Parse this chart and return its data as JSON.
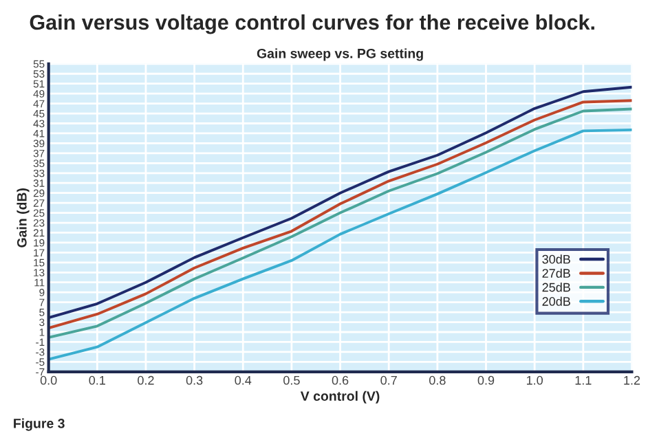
{
  "chart_data": {
    "type": "line",
    "title": "Gain versus voltage control curves for the receive block.",
    "subtitle": "Gain sweep vs. PG setting",
    "xlabel": "V control (V)",
    "ylabel": "Gain (dB)",
    "x": [
      0.0,
      0.1,
      0.2,
      0.3,
      0.4,
      0.5,
      0.6,
      0.7,
      0.8,
      0.9,
      1.0,
      1.1,
      1.2
    ],
    "series": [
      {
        "name": "30dB",
        "color": "#1f2a6b",
        "values": [
          3.9,
          6.7,
          11.0,
          16.0,
          20.0,
          23.9,
          29.0,
          33.3,
          36.6,
          41.1,
          46.0,
          49.4,
          50.3
        ]
      },
      {
        "name": "27dB",
        "color": "#c0462a",
        "values": [
          1.8,
          4.6,
          8.7,
          13.9,
          17.9,
          21.3,
          26.8,
          31.4,
          34.8,
          39.1,
          43.7,
          47.3,
          47.6
        ]
      },
      {
        "name": "25dB",
        "color": "#4aa59a",
        "values": [
          -0.1,
          2.2,
          6.8,
          11.7,
          15.9,
          20.2,
          25.0,
          29.4,
          32.9,
          37.2,
          41.8,
          45.5,
          45.9
        ]
      },
      {
        "name": "20dB",
        "color": "#3aaed0",
        "values": [
          -4.5,
          -2.0,
          2.9,
          7.8,
          11.7,
          15.4,
          20.7,
          24.8,
          28.8,
          33.1,
          37.5,
          41.5,
          41.7
        ]
      }
    ],
    "xlim": [
      0.0,
      1.2
    ],
    "ylim": [
      -7,
      55
    ],
    "xticks": [
      {
        "value": 0.0,
        "label": "0.0"
      },
      0.1,
      0.2,
      0.3,
      0.4,
      0.5,
      0.6,
      0.7,
      0.8,
      0.9,
      {
        "value": 1.0,
        "label": "1.0"
      },
      1.1,
      1.2
    ],
    "yticks": [
      -7,
      -5,
      -3,
      -1,
      1,
      3,
      5,
      7,
      9,
      11,
      13,
      15,
      17,
      19,
      21,
      23,
      25,
      27,
      29,
      31,
      33,
      35,
      37,
      39,
      41,
      43,
      45,
      47,
      49,
      51,
      53,
      55
    ],
    "grid": true,
    "legend": "bottom right",
    "line_style": "solid",
    "marker": "none",
    "annotations": [
      "Figure 3"
    ]
  }
}
